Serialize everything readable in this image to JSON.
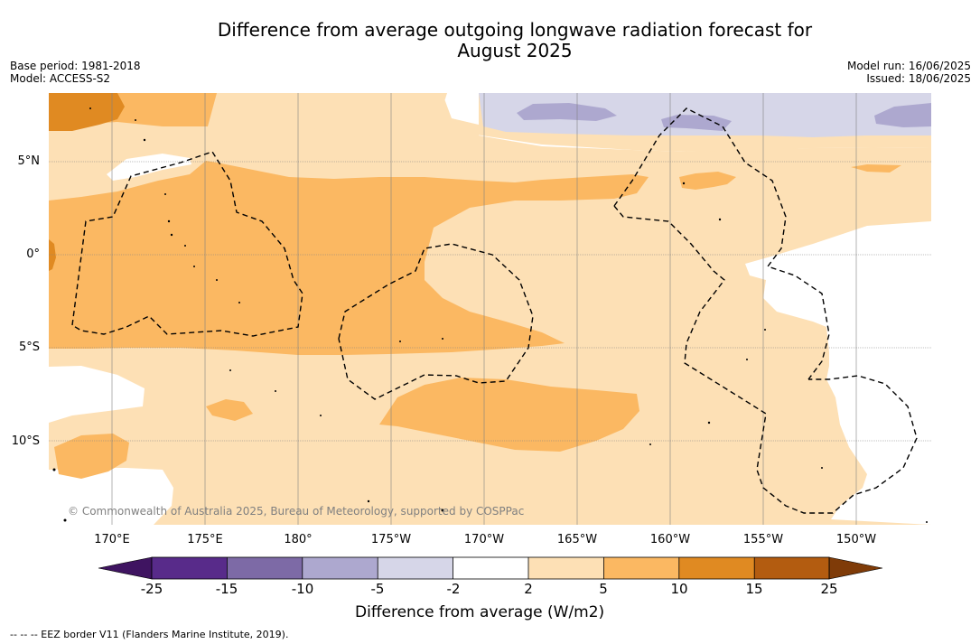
{
  "title": {
    "line1": "Difference from average outgoing longwave radiation forecast for",
    "line2": "August 2025"
  },
  "meta_left": {
    "base_period": "Base period: 1981-2018",
    "model": "Model: ACCESS-S2"
  },
  "meta_right": {
    "model_run": "Model run: 16/06/2025",
    "issued": "Issued: 18/06/2025"
  },
  "map": {
    "lat_labels": [
      "5°N",
      "0°",
      "5°S",
      "10°S"
    ],
    "lon_labels": [
      "170°E",
      "175°E",
      "180°",
      "175°W",
      "170°W",
      "165°W",
      "160°W",
      "155°W",
      "150°W"
    ],
    "copyright": "© Commonwealth of Australia 2025, Bureau of Meteorology, supported by COSPPac",
    "eez_border_style": "dashed"
  },
  "colorbar": {
    "ticks": [
      "-25",
      "-15",
      "-10",
      "-5",
      "-2",
      "2",
      "5",
      "10",
      "15",
      "25"
    ],
    "colors": [
      "#3f1461",
      "#582b8a",
      "#7d6aa6",
      "#ada8cf",
      "#d6d6e8",
      "#ffffff",
      "#fde0b5",
      "#fbb862",
      "#e08a22",
      "#b35c10",
      "#7f3b08"
    ],
    "label": "Difference from average (W/m2)"
  },
  "footnote": "--  --  -- EEZ border V11 (Flanders Marine Institute, 2019)."
}
